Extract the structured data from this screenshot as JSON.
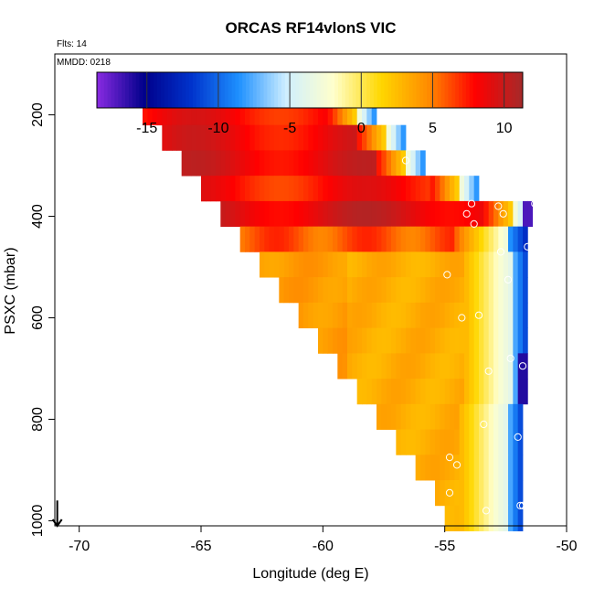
{
  "chart_data": {
    "type": "heatmap",
    "title": "ORCAS RF14vlonS VIC",
    "annotations": {
      "flts": "Flts: 14",
      "mmdd": "MMDD: 0218"
    },
    "xlabel": "Longitude (deg E)",
    "ylabel": "PSXC (mbar)",
    "xlim": [
      -71,
      -50
    ],
    "ylim": [
      1010,
      80
    ],
    "y_reversed": true,
    "grid": false,
    "x_ticks": [
      -70,
      -65,
      -60,
      -55,
      -50
    ],
    "x_tick_labels": [
      "-70",
      "-65",
      "-60",
      "-55",
      "-50"
    ],
    "y_ticks": [
      200,
      400,
      600,
      800,
      1000
    ],
    "y_tick_labels": [
      "200",
      "400",
      "600",
      "800",
      "1000"
    ],
    "colorbar": {
      "range": [
        -18.5,
        11.3
      ],
      "ticks": [
        -15,
        -10,
        -5,
        0,
        5,
        10
      ],
      "tick_labels": [
        "-15",
        "-10",
        "-5",
        "0",
        "5",
        "10"
      ],
      "colors": [
        "#8a2be2",
        "#00008b",
        "#0033cc",
        "#1e90ff",
        "#cfefff",
        "#ffffcc",
        "#ffd700",
        "#ff8c00",
        "#ff0000",
        "#a52a2a"
      ]
    },
    "field": {
      "lon_start": -70,
      "lon_step": 0.2,
      "p_start": 170,
      "p_step": 50,
      "rows": [
        {
          "p": 170,
          "lon_min": -67.4,
          "lon_max": -57.8
        },
        {
          "p": 220,
          "lon_min": -66.6,
          "lon_max": -56.6
        },
        {
          "p": 270,
          "lon_min": -65.8,
          "lon_max": -55.8
        },
        {
          "p": 320,
          "lon_min": -65.0,
          "lon_max": -53.6
        },
        {
          "p": 370,
          "lon_min": -64.2,
          "lon_max": -51.4
        },
        {
          "p": 420,
          "lon_min": -63.4,
          "lon_max": -51.6
        },
        {
          "p": 470,
          "lon_min": -62.6,
          "lon_max": -51.6
        },
        {
          "p": 520,
          "lon_min": -61.8,
          "lon_max": -51.6
        },
        {
          "p": 570,
          "lon_min": -61.0,
          "lon_max": -51.6
        },
        {
          "p": 620,
          "lon_min": -60.2,
          "lon_max": -51.6
        },
        {
          "p": 670,
          "lon_min": -59.4,
          "lon_max": -51.6
        },
        {
          "p": 720,
          "lon_min": -58.6,
          "lon_max": -51.6
        },
        {
          "p": 770,
          "lon_min": -57.8,
          "lon_max": -51.8
        },
        {
          "p": 820,
          "lon_min": -57.0,
          "lon_max": -51.8
        },
        {
          "p": 870,
          "lon_min": -56.2,
          "lon_max": -51.8
        },
        {
          "p": 920,
          "lon_min": -55.4,
          "lon_max": -51.8
        },
        {
          "p": 970,
          "lon_min": -55.0,
          "lon_max": -51.8
        }
      ]
    },
    "observations": [
      {
        "lon": -67.3,
        "p": 180
      },
      {
        "lon": -62.7,
        "p": 180
      },
      {
        "lon": -61.8,
        "p": 180
      },
      {
        "lon": -58.3,
        "p": 180
      },
      {
        "lon": -58.0,
        "p": 180
      },
      {
        "lon": -56.6,
        "p": 290
      },
      {
        "lon": -54.1,
        "p": 395
      },
      {
        "lon": -53.9,
        "p": 375
      },
      {
        "lon": -53.8,
        "p": 415
      },
      {
        "lon": -52.8,
        "p": 380
      },
      {
        "lon": -52.6,
        "p": 395
      },
      {
        "lon": -51.6,
        "p": 460
      },
      {
        "lon": -51.3,
        "p": 375
      },
      {
        "lon": -54.9,
        "p": 515
      },
      {
        "lon": -52.7,
        "p": 470
      },
      {
        "lon": -52.4,
        "p": 525
      },
      {
        "lon": -53.6,
        "p": 595
      },
      {
        "lon": -54.3,
        "p": 600
      },
      {
        "lon": -53.2,
        "p": 705
      },
      {
        "lon": -52.3,
        "p": 680
      },
      {
        "lon": -51.8,
        "p": 695
      },
      {
        "lon": -53.4,
        "p": 810
      },
      {
        "lon": -52.0,
        "p": 835
      },
      {
        "lon": -54.8,
        "p": 875
      },
      {
        "lon": -54.5,
        "p": 890
      },
      {
        "lon": -54.8,
        "p": 945
      },
      {
        "lon": -53.3,
        "p": 980
      },
      {
        "lon": -51.9,
        "p": 970
      },
      {
        "lon": -51.8,
        "p": 970
      }
    ],
    "arrow": {
      "lon": -70.9,
      "p_from": 960,
      "p_to": 1010
    }
  }
}
